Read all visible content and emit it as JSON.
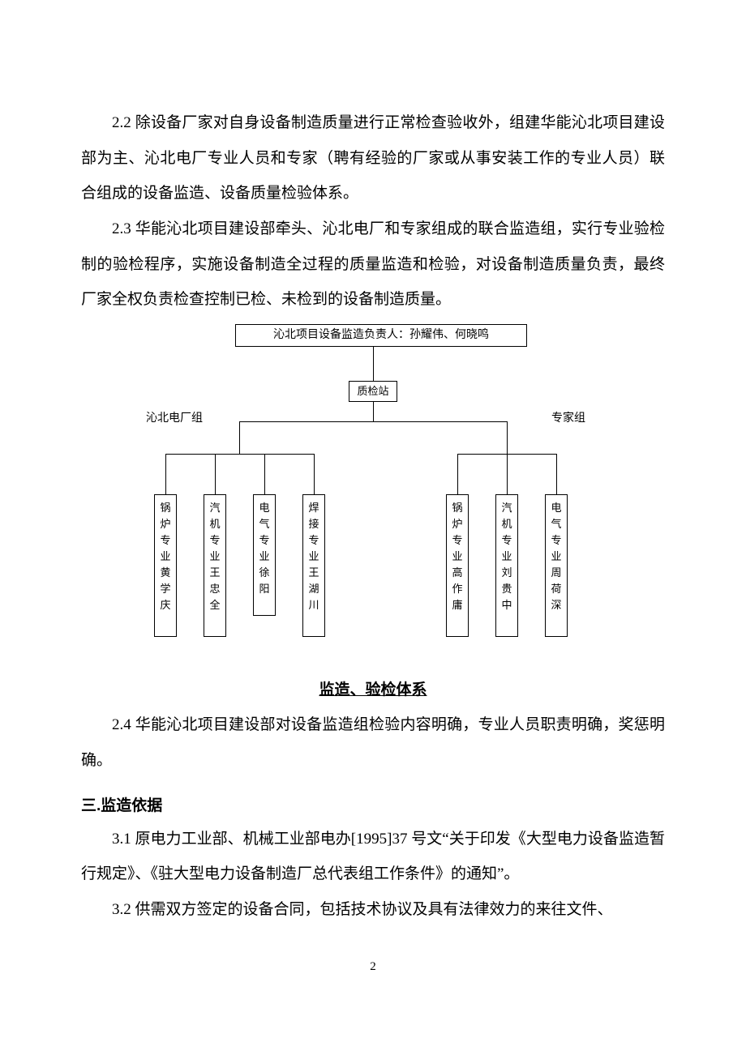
{
  "paragraphs": {
    "p22": "2.2 除设备厂家对自身设备制造质量进行正常检查验收外，组建华能沁北项目建设部为主、沁北电厂专业人员和专家（聘有经验的厂家或从事安装工作的专业人员）联合组成的设备监造、设备质量检验体系。",
    "p23": "2.3 华能沁北项目建设部牵头、沁北电厂和专家组成的联合监造组，实行专业验检制的验检程序，实施设备制造全过程的质量监造和检验，对设备制造质量负责，最终厂家全权负责检查控制已检、未检到的设备制造质量。",
    "p24": "2.4 华能沁北项目建设部对设备监造组检验内容明确，专业人员职责明确，奖惩明确。",
    "p31": "3.1 原电力工业部、机械工业部电办[1995]37 号文“关于印发《大型电力设备监造暂行规定》、《驻大型电力设备制造厂总代表组工作条件》的通知”。",
    "p32": "3.2 供需双方签定的设备合同，包括技术协议及具有法律效力的来往文件、"
  },
  "section3_heading": "三.监造依据",
  "chart": {
    "top_label": "沁北项目设备监造负责人：孙耀伟、何晓鸣",
    "qc_label": "质检站",
    "left_group_label": "沁北电厂组",
    "right_group_label": "专家组",
    "title": "监造、验检体系",
    "left_leaves": [
      "锅炉专业黄学庆",
      "汽机专业王忠全",
      "电气专业徐阳",
      "焊接专业王湖川"
    ],
    "right_leaves": [
      "锅炉专业高作庸",
      "汽机专业刘贵中",
      "电气专业周荷深"
    ],
    "colors": {
      "line": "#000000",
      "text": "#000000",
      "bg": "#ffffff"
    },
    "leaf_fontsize": 13,
    "label_fontsize": 14
  },
  "page_number": "2"
}
